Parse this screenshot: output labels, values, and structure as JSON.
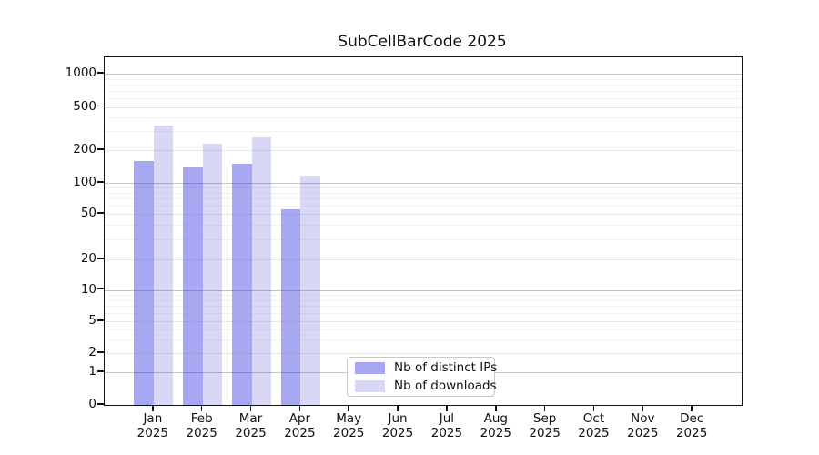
{
  "title": "SubCellBarCode 2025",
  "legend": {
    "items": [
      {
        "label": "Nb of distinct IPs",
        "color": "#a8a8f2"
      },
      {
        "label": "Nb of downloads",
        "color": "#d8d8f6"
      }
    ]
  },
  "y_axis": {
    "tick_labels": [
      "0",
      "1",
      "2",
      "5",
      "10",
      "20",
      "50",
      "100",
      "200",
      "500",
      "1000"
    ],
    "tick_values": [
      0,
      1,
      2,
      5,
      10,
      20,
      50,
      100,
      200,
      500,
      1000
    ]
  },
  "x_axis": {
    "months": [
      {
        "month": "Jan",
        "year": "2025"
      },
      {
        "month": "Feb",
        "year": "2025"
      },
      {
        "month": "Mar",
        "year": "2025"
      },
      {
        "month": "Apr",
        "year": "2025"
      },
      {
        "month": "May",
        "year": "2025"
      },
      {
        "month": "Jun",
        "year": "2025"
      },
      {
        "month": "Jul",
        "year": "2025"
      },
      {
        "month": "Aug",
        "year": "2025"
      },
      {
        "month": "Sep",
        "year": "2025"
      },
      {
        "month": "Oct",
        "year": "2025"
      },
      {
        "month": "Nov",
        "year": "2025"
      },
      {
        "month": "Dec",
        "year": "2025"
      }
    ]
  },
  "chart_data": {
    "type": "bar",
    "title": "SubCellBarCode 2025",
    "categories": [
      "Jan 2025",
      "Feb 2025",
      "Mar 2025",
      "Apr 2025",
      "May 2025",
      "Jun 2025",
      "Jul 2025",
      "Aug 2025",
      "Sep 2025",
      "Oct 2025",
      "Nov 2025",
      "Dec 2025"
    ],
    "series": [
      {
        "name": "Nb of distinct IPs",
        "color": "#a8a8f2",
        "values": [
          160,
          140,
          150,
          55,
          0,
          0,
          0,
          0,
          0,
          0,
          0,
          0
        ]
      },
      {
        "name": "Nb of downloads",
        "color": "#d8d8f6",
        "values": [
          340,
          230,
          260,
          117,
          0,
          0,
          0,
          0,
          0,
          0,
          0,
          0
        ]
      }
    ],
    "ylabel": "",
    "xlabel": "",
    "yscale": "asinh",
    "y_ticks": [
      0,
      1,
      2,
      5,
      10,
      20,
      50,
      100,
      200,
      500,
      1000
    ],
    "ylim": [
      0,
      1400
    ],
    "grid": true,
    "legend_position": "lower center inside"
  }
}
